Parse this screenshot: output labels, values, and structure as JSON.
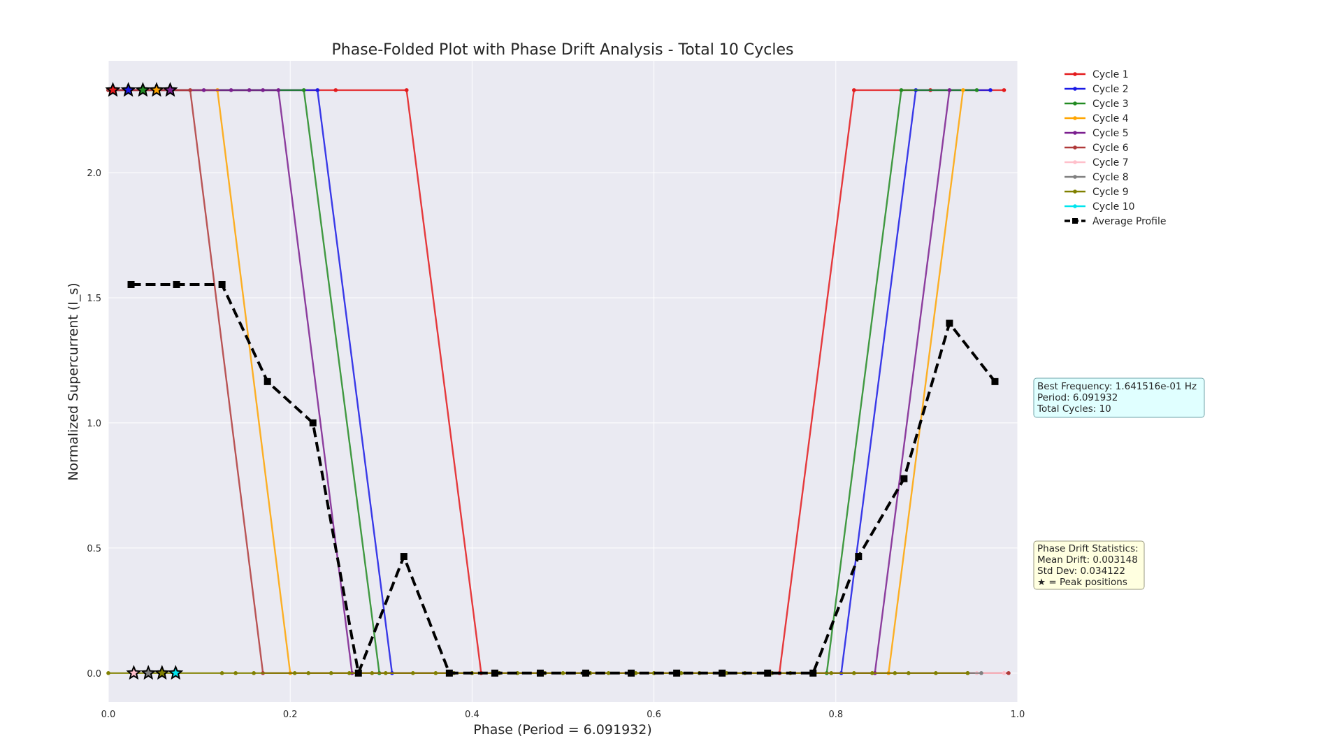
{
  "chart_data": {
    "type": "line",
    "title": "Phase-Folded Plot with Phase Drift Analysis - Total 10 Cycles",
    "xlabel": "Phase (Period = 6.091932)",
    "ylabel": "Normalized Supercurrent (I_s)",
    "xlim": [
      0.0,
      1.0
    ],
    "ylim": [
      -0.115,
      2.447
    ],
    "xticks": [
      0.0,
      0.2,
      0.4,
      0.6,
      0.8,
      1.0
    ],
    "xtick_labels": [
      "0.0",
      "0.2",
      "0.4",
      "0.6",
      "0.8",
      "1.0"
    ],
    "yticks": [
      0.0,
      0.5,
      1.0,
      1.5,
      2.0
    ],
    "ytick_labels": [
      "0.0",
      "0.5",
      "1.0",
      "1.5",
      "2.0"
    ],
    "grid": true,
    "legend_position": "top-right, outside plot",
    "series": [
      {
        "name": "Cycle 1",
        "color": "#e41a1c",
        "style": "solid",
        "marker": "dot",
        "x": [
          0.0,
          0.25,
          0.328,
          0.41,
          0.738,
          0.82,
          0.904,
          0.985
        ],
        "y": [
          2.33,
          2.33,
          2.33,
          0.0,
          0.0,
          2.33,
          2.33,
          2.33
        ]
      },
      {
        "name": "Cycle 2",
        "color": "#1a1ae6",
        "style": "solid",
        "marker": "dot",
        "x": [
          0.0,
          0.23,
          0.312,
          0.806,
          0.888,
          0.97
        ],
        "y": [
          2.33,
          2.33,
          0.0,
          0.0,
          2.33,
          2.33
        ]
      },
      {
        "name": "Cycle 3",
        "color": "#228b22",
        "style": "solid",
        "marker": "dot",
        "x": [
          0.0,
          0.215,
          0.298,
          0.79,
          0.872,
          0.955
        ],
        "y": [
          2.33,
          2.33,
          0.0,
          0.0,
          2.33,
          2.33
        ]
      },
      {
        "name": "Cycle 4",
        "color": "#ffa500",
        "style": "solid",
        "marker": "dot",
        "x": [
          0.0,
          0.12,
          0.2,
          0.858,
          0.94
        ],
        "y": [
          2.33,
          2.33,
          0.0,
          0.0,
          2.33
        ]
      },
      {
        "name": "Cycle 5",
        "color": "#7b1f8f",
        "style": "solid",
        "marker": "dot",
        "x": [
          0.0,
          0.105,
          0.135,
          0.155,
          0.17,
          0.187,
          0.268,
          0.843,
          0.925
        ],
        "y": [
          2.33,
          2.33,
          2.33,
          2.33,
          2.33,
          2.33,
          0.0,
          0.0,
          2.33
        ]
      },
      {
        "name": "Cycle 6",
        "color": "#b03a3a",
        "style": "solid",
        "marker": "dot",
        "x": [
          0.0,
          0.09,
          0.17,
          0.99
        ],
        "y": [
          2.33,
          2.33,
          0.0,
          0.0
        ]
      },
      {
        "name": "Cycle 7",
        "color": "#ffc0cb",
        "style": "solid",
        "marker": "dot",
        "x": [
          0.955,
          0.985
        ],
        "y": [
          0.0,
          0.0
        ]
      },
      {
        "name": "Cycle 8",
        "color": "#808080",
        "style": "solid",
        "marker": "dot",
        "x": [
          0.945,
          0.96
        ],
        "y": [
          0.0,
          0.0
        ]
      },
      {
        "name": "Cycle 9",
        "color": "#808000",
        "style": "solid",
        "marker": "dot",
        "x": [
          0.0,
          0.125,
          0.14,
          0.16,
          0.205,
          0.22,
          0.245,
          0.265,
          0.29,
          0.305,
          0.335,
          0.36,
          0.38,
          0.4,
          0.43,
          0.45,
          0.48,
          0.5,
          0.53,
          0.55,
          0.58,
          0.6,
          0.63,
          0.65,
          0.68,
          0.7,
          0.73,
          0.75,
          0.775,
          0.795,
          0.82,
          0.84,
          0.865,
          0.88,
          0.91,
          0.945
        ],
        "y": [
          0.0,
          0.0,
          0.0,
          0.0,
          0.0,
          0.0,
          0.0,
          0.0,
          0.0,
          0.0,
          0.0,
          0.0,
          0.0,
          0.0,
          0.0,
          0.0,
          0.0,
          0.0,
          0.0,
          0.0,
          0.0,
          0.0,
          0.0,
          0.0,
          0.0,
          0.0,
          0.0,
          0.0,
          0.0,
          0.0,
          0.0,
          0.0,
          0.0,
          0.0,
          0.0,
          0.0
        ]
      },
      {
        "name": "Cycle 10",
        "color": "#00e5ee",
        "style": "solid",
        "marker": "dot",
        "x": [],
        "y": []
      },
      {
        "name": "Average Profile",
        "color": "#000000",
        "style": "dashed",
        "marker": "square",
        "x": [
          0.025,
          0.075,
          0.125,
          0.175,
          0.225,
          0.275,
          0.325,
          0.375,
          0.425,
          0.475,
          0.525,
          0.575,
          0.625,
          0.675,
          0.725,
          0.775,
          0.825,
          0.875,
          0.925,
          0.975
        ],
        "y": [
          1.553,
          1.553,
          1.553,
          1.165,
          1.0,
          0.0,
          0.466,
          0.0,
          0.0,
          0.0,
          0.0,
          0.0,
          0.0,
          0.0,
          0.0,
          0.0,
          0.466,
          0.777,
          1.398,
          1.165
        ]
      }
    ],
    "peak_markers": {
      "symbol": "star",
      "points": [
        {
          "x": 0.005,
          "y": 2.33,
          "color": "#e41a1c"
        },
        {
          "x": 0.022,
          "y": 2.33,
          "color": "#1a1ae6"
        },
        {
          "x": 0.038,
          "y": 2.33,
          "color": "#228b22"
        },
        {
          "x": 0.053,
          "y": 2.33,
          "color": "#ffa500"
        },
        {
          "x": 0.068,
          "y": 2.33,
          "color": "#7b1f8f"
        },
        {
          "x": 0.028,
          "y": 0.0,
          "color": "#ffc0cb"
        },
        {
          "x": 0.044,
          "y": 0.0,
          "color": "#808080"
        },
        {
          "x": 0.059,
          "y": 0.0,
          "color": "#808000"
        },
        {
          "x": 0.074,
          "y": 0.0,
          "color": "#00e5ee"
        }
      ]
    },
    "annotations": [
      {
        "name": "frequency-info",
        "lines": [
          "Best Frequency: 1.641516e-01 Hz",
          "Period: 6.091932",
          "Total Cycles: 10"
        ],
        "facecolor": "#e0ffff",
        "edgecolor": "#6fa3a8"
      },
      {
        "name": "drift-stats",
        "lines": [
          "Phase Drift Statistics:",
          "Mean Drift: 0.003148",
          "Std Dev: 0.034122",
          "★ = Peak positions"
        ],
        "facecolor": "#ffffe0",
        "edgecolor": "#9a9a80"
      }
    ]
  }
}
